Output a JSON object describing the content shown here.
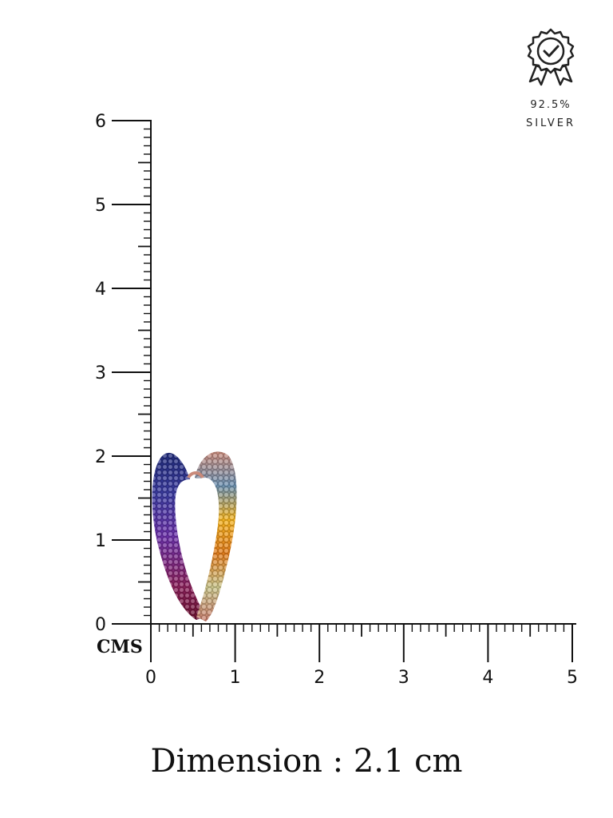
{
  "badge": {
    "purity": "92.5%",
    "metal": "SILVER",
    "icon": "certified-badge-icon"
  },
  "ruler": {
    "unit_label": "CMS",
    "y_ticks": [
      "0",
      "1",
      "2",
      "3",
      "4",
      "5",
      "6"
    ],
    "x_ticks": [
      "0",
      "1",
      "2",
      "3",
      "4",
      "5"
    ]
  },
  "product": {
    "description_icon": "rainbow-pave-heart-earring",
    "colors": [
      "#1f2a7a",
      "#5b2a9a",
      "#8a1f5a",
      "#e07a1a",
      "#f2b11e",
      "#c9c48a",
      "#c98a7a"
    ]
  },
  "caption": {
    "text": "Dimension : 2.1 cm"
  }
}
